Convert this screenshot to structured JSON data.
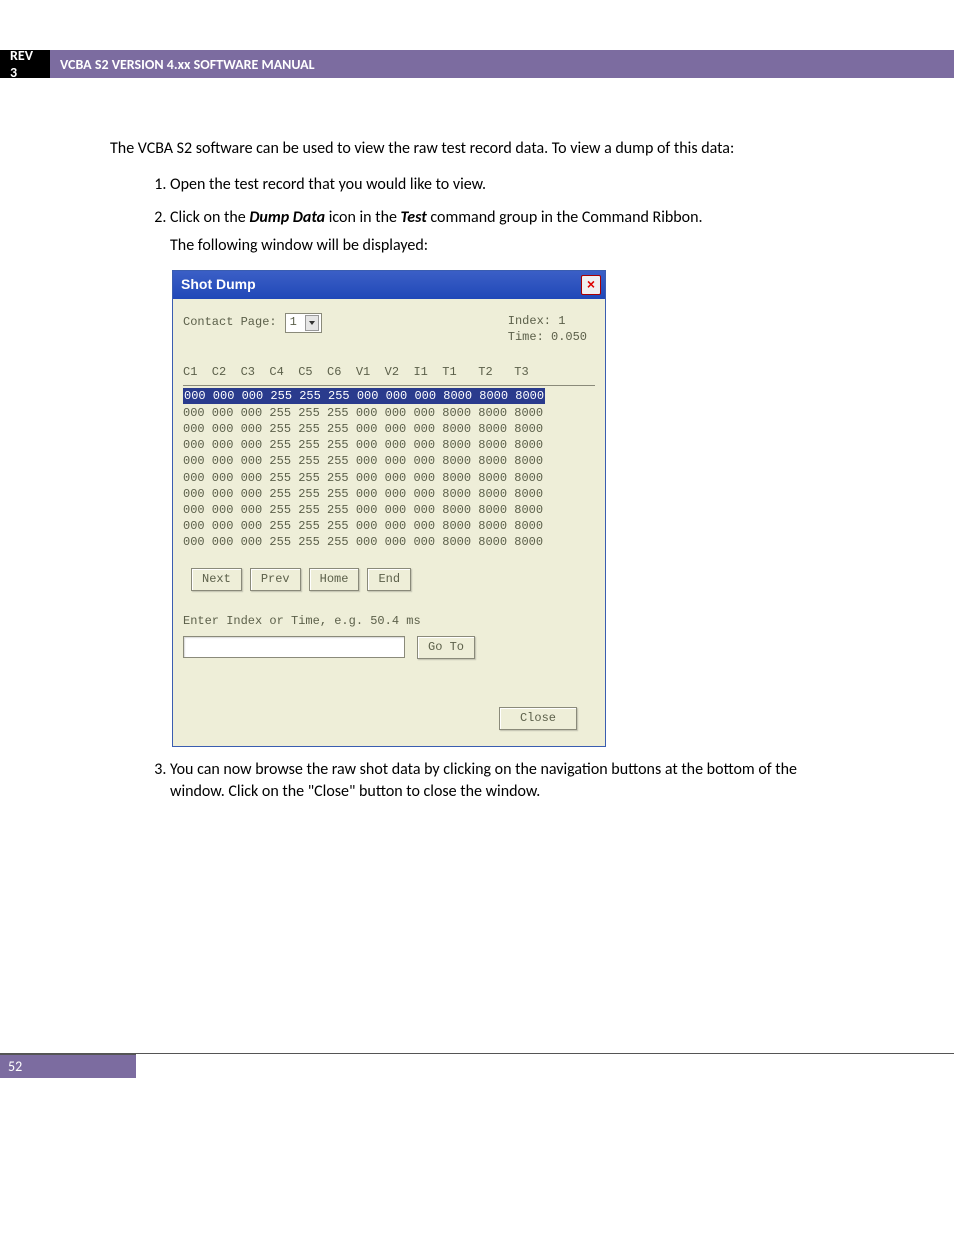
{
  "header": {
    "rev": "REV 3",
    "title": "VCBA S2 VERSION 4.xx SOFTWARE MANUAL"
  },
  "intro": "The VCBA S2 software can be used to view the raw test record data. To view a dump of this data:",
  "steps": {
    "s1": "Open the test record that you would like to view.",
    "s2_a": "Click on the ",
    "s2_b": "Dump Data",
    "s2_c": " icon in the ",
    "s2_d": "Test",
    "s2_e": " command group in the Command Ribbon.",
    "s2_sub": "The following window will be displayed:",
    "s3": "You can now browse the raw shot data by clicking on the navigation buttons at the bottom of the window. Click on the \"Close\" button to close the window."
  },
  "shotdump": {
    "title": "Shot Dump",
    "contact_label": "Contact Page:",
    "contact_value": "1",
    "index_label": "Index: 1",
    "time_label": "Time:  0.050",
    "headers": "C1  C2  C3  C4  C5  C6  V1  V2  I1  T1   T2   T3",
    "rows": [
      "000 000 000 255 255 255 000 000 000 8000 8000 8000",
      "000 000 000 255 255 255 000 000 000 8000 8000 8000",
      "000 000 000 255 255 255 000 000 000 8000 8000 8000",
      "000 000 000 255 255 255 000 000 000 8000 8000 8000",
      "000 000 000 255 255 255 000 000 000 8000 8000 8000",
      "000 000 000 255 255 255 000 000 000 8000 8000 8000",
      "000 000 000 255 255 255 000 000 000 8000 8000 8000",
      "000 000 000 255 255 255 000 000 000 8000 8000 8000",
      "000 000 000 255 255 255 000 000 000 8000 8000 8000",
      "000 000 000 255 255 255 000 000 000 8000 8000 8000"
    ],
    "btn_next": "Next",
    "btn_prev": "Prev",
    "btn_home": "Home",
    "btn_end": "End",
    "goto_label": "Enter Index or Time, e.g. 50.4 ms",
    "btn_goto": "Go To",
    "btn_close": "Close"
  },
  "footer": {
    "page_num": "52"
  }
}
